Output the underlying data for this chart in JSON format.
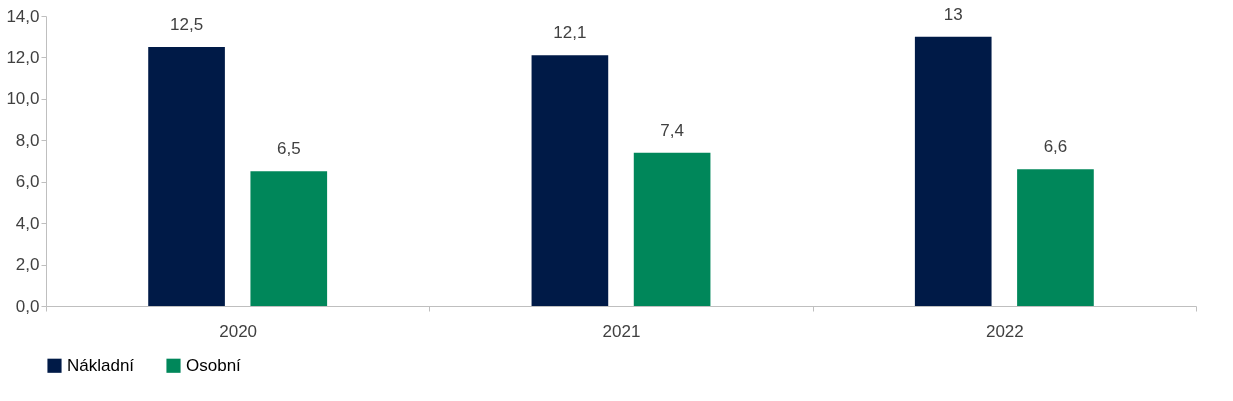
{
  "chart_data": {
    "type": "bar",
    "categories": [
      "2020",
      "2021",
      "2022"
    ],
    "series": [
      {
        "name": "Nákladní",
        "color": "#001a47",
        "values": [
          12.5,
          12.1,
          13
        ],
        "value_labels": [
          "12,5",
          "12,1",
          "13"
        ]
      },
      {
        "name": "Osobní",
        "color": "#00875a",
        "values": [
          6.5,
          7.4,
          6.6
        ],
        "value_labels": [
          "6,5",
          "7,4",
          "6,6"
        ]
      }
    ],
    "ylim": [
      0,
      14
    ],
    "yticks": [
      {
        "value": 0,
        "label": "0,0"
      },
      {
        "value": 2,
        "label": "2,0"
      },
      {
        "value": 4,
        "label": "4,0"
      },
      {
        "value": 6,
        "label": "6,0"
      },
      {
        "value": 8,
        "label": "8,0"
      },
      {
        "value": 10,
        "label": "10,0"
      },
      {
        "value": 12,
        "label": "12,0"
      },
      {
        "value": 14,
        "label": "14,0"
      }
    ],
    "grid": false,
    "legend": "bottom"
  }
}
